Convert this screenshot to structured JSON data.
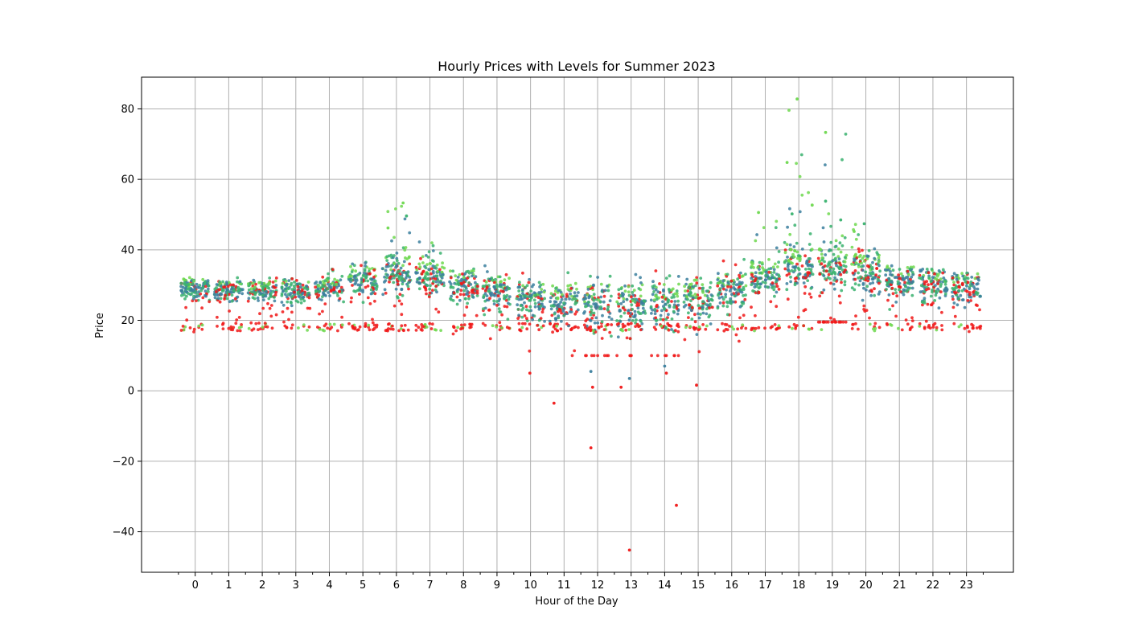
{
  "chart_data": {
    "type": "scatter",
    "title": "Hourly Prices with Levels for Summer 2023",
    "xlabel": "Hour of the Day",
    "ylabel": "Price",
    "xlim": [
      -1.6,
      24.4
    ],
    "ylim": [
      -51.5,
      89
    ],
    "x_ticks": [
      0,
      1,
      2,
      3,
      4,
      5,
      6,
      7,
      8,
      9,
      10,
      11,
      12,
      13,
      14,
      15,
      16,
      17,
      18,
      19,
      20,
      21,
      22,
      23
    ],
    "y_ticks": [
      -40,
      -20,
      0,
      20,
      40,
      60,
      80
    ],
    "grid": true,
    "series_colors": {
      "red": "#f01818",
      "blue": "#3b7f9e",
      "green": "#39b26f",
      "lime": "#6ed84f"
    },
    "hourly_summary": [
      {
        "hour": 0,
        "core_low": 26,
        "core_high": 32,
        "min": 16.5,
        "max": 33
      },
      {
        "hour": 1,
        "core_low": 26,
        "core_high": 31,
        "min": 16.8,
        "max": 32.5
      },
      {
        "hour": 2,
        "core_low": 26,
        "core_high": 31,
        "min": 16.5,
        "max": 32
      },
      {
        "hour": 3,
        "core_low": 25,
        "core_high": 31,
        "min": 16.8,
        "max": 33
      },
      {
        "hour": 4,
        "core_low": 26,
        "core_high": 32,
        "min": 17,
        "max": 34.5
      },
      {
        "hour": 5,
        "core_low": 27,
        "core_high": 35,
        "min": 17,
        "max": 38
      },
      {
        "hour": 6,
        "core_low": 28,
        "core_high": 38,
        "min": 17,
        "max": 53.5
      },
      {
        "hour": 7,
        "core_low": 28,
        "core_high": 36,
        "min": 17,
        "max": 42.5
      },
      {
        "hour": 8,
        "core_low": 26,
        "core_high": 34,
        "min": 15.5,
        "max": 37.5
      },
      {
        "hour": 9,
        "core_low": 24,
        "core_high": 32,
        "min": 12.8,
        "max": 35.5
      },
      {
        "hour": 10,
        "core_low": 20,
        "core_high": 31,
        "min": 5,
        "max": 35
      },
      {
        "hour": 11,
        "core_low": 19,
        "core_high": 30,
        "min": -3.5,
        "max": 33.5
      },
      {
        "hour": 12,
        "core_low": 18,
        "core_high": 30,
        "min": -16.2,
        "max": 32.5
      },
      {
        "hour": 13,
        "core_low": 18,
        "core_high": 30,
        "min": -45.2,
        "max": 33
      },
      {
        "hour": 14,
        "core_low": 18,
        "core_high": 30,
        "min": -32.5,
        "max": 34.5
      },
      {
        "hour": 15,
        "core_low": 20,
        "core_high": 31,
        "min": 1.5,
        "max": 36
      },
      {
        "hour": 16,
        "core_low": 24,
        "core_high": 33,
        "min": 13,
        "max": 38
      },
      {
        "hour": 17,
        "core_low": 28,
        "core_high": 36,
        "min": 16.5,
        "max": 50.5
      },
      {
        "hour": 18,
        "core_low": 29,
        "core_high": 40,
        "min": 17.5,
        "max": 83
      },
      {
        "hour": 19,
        "core_low": 29,
        "core_high": 40,
        "min": 19.5,
        "max": 73.5
      },
      {
        "hour": 20,
        "core_low": 28,
        "core_high": 38,
        "min": 17.5,
        "max": 47.5
      },
      {
        "hour": 21,
        "core_low": 27,
        "core_high": 35,
        "min": 17.3,
        "max": 39.5
      },
      {
        "hour": 22,
        "core_low": 26,
        "core_high": 34,
        "min": 17,
        "max": 34.5
      },
      {
        "hour": 23,
        "core_low": 26,
        "core_high": 33,
        "min": 16.8,
        "max": 34
      }
    ],
    "notable_points": [
      {
        "x": 10.7,
        "y": -3.5,
        "color": "red"
      },
      {
        "x": 9.98,
        "y": 5,
        "color": "red"
      },
      {
        "x": 11.8,
        "y": 5.5,
        "color": "blue"
      },
      {
        "x": 11.85,
        "y": 1,
        "color": "red"
      },
      {
        "x": 11.8,
        "y": -16.2,
        "color": "red"
      },
      {
        "x": 12.7,
        "y": 1,
        "color": "red"
      },
      {
        "x": 12.95,
        "y": 3.5,
        "color": "blue"
      },
      {
        "x": 12.95,
        "y": -45.2,
        "color": "red"
      },
      {
        "x": 14.05,
        "y": 5,
        "color": "red"
      },
      {
        "x": 14.0,
        "y": 7,
        "color": "blue"
      },
      {
        "x": 14.35,
        "y": -32.5,
        "color": "red"
      },
      {
        "x": 14.95,
        "y": 1.6,
        "color": "red"
      },
      {
        "x": 6.2,
        "y": 53.3,
        "color": "lime"
      },
      {
        "x": 6.3,
        "y": 49.6,
        "color": "green"
      },
      {
        "x": 5.75,
        "y": 46.2,
        "color": "lime"
      },
      {
        "x": 17.65,
        "y": 64.8,
        "color": "lime"
      },
      {
        "x": 17.95,
        "y": 82.8,
        "color": "lime"
      },
      {
        "x": 18.8,
        "y": 73.3,
        "color": "lime"
      },
      {
        "x": 18.8,
        "y": 53.8,
        "color": "green"
      },
      {
        "x": 17.8,
        "y": 50.2,
        "color": "green"
      },
      {
        "x": 18.4,
        "y": 52.7,
        "color": "lime"
      },
      {
        "x": 16.8,
        "y": 50.6,
        "color": "lime"
      },
      {
        "x": 19.25,
        "y": 48.5,
        "color": "green"
      },
      {
        "x": 19.95,
        "y": 47.4,
        "color": "green"
      },
      {
        "x": 19.65,
        "y": 45.2,
        "color": "lime"
      }
    ]
  }
}
